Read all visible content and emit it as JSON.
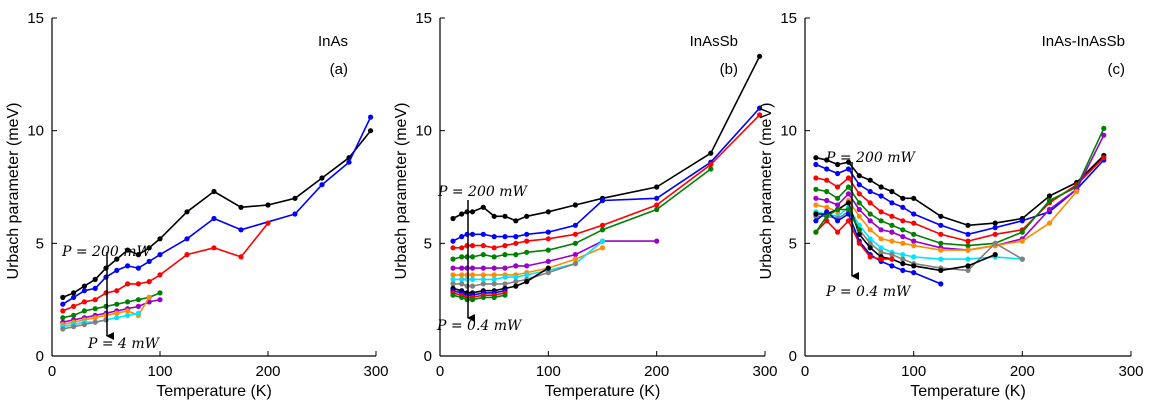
{
  "chart_data": [
    {
      "type": "line",
      "panel": "(a)",
      "title": "InAs",
      "xlabel": "Temperature (K)",
      "ylabel": "Urbach parameter (meV)",
      "xlim": [
        0,
        300
      ],
      "ylim": [
        0,
        15
      ],
      "xticks": [
        "0",
        "100",
        "200",
        "300"
      ],
      "yticks": [
        "0",
        "5",
        "10",
        "15"
      ],
      "grid": false,
      "legend": "none",
      "annotations": {
        "top": "P = 200 mW",
        "bottom": "P = 4 mW"
      },
      "series": [
        {
          "color": "#000000",
          "x": [
            10,
            20,
            30,
            40,
            50,
            60,
            70,
            80,
            90,
            100,
            125,
            150,
            175,
            200,
            225,
            250,
            275,
            295
          ],
          "y": [
            2.6,
            2.8,
            3.1,
            3.4,
            3.9,
            4.3,
            4.7,
            4.5,
            4.8,
            5.2,
            6.4,
            7.3,
            6.6,
            6.7,
            7.0,
            7.9,
            8.8,
            10.0
          ]
        },
        {
          "color": "#0000ff",
          "x": [
            10,
            20,
            30,
            40,
            50,
            60,
            70,
            80,
            90,
            100,
            125,
            150,
            175,
            225,
            250,
            275,
            295
          ],
          "y": [
            2.3,
            2.6,
            2.9,
            3.0,
            3.5,
            3.8,
            4.0,
            3.9,
            4.2,
            4.5,
            5.2,
            6.1,
            5.6,
            6.3,
            7.6,
            8.6,
            10.6
          ]
        },
        {
          "color": "#ff0000",
          "x": [
            10,
            20,
            30,
            40,
            50,
            60,
            70,
            80,
            90,
            100,
            125,
            150,
            175,
            200
          ],
          "y": [
            2.0,
            2.2,
            2.4,
            2.5,
            2.8,
            2.9,
            3.2,
            3.2,
            3.3,
            3.6,
            4.5,
            4.8,
            4.4,
            5.9
          ]
        },
        {
          "color": "#008000",
          "x": [
            10,
            20,
            30,
            40,
            50,
            60,
            70,
            80,
            90,
            100
          ],
          "y": [
            1.7,
            1.8,
            2.0,
            2.1,
            2.2,
            2.3,
            2.4,
            2.5,
            2.6,
            2.8
          ]
        },
        {
          "color": "#9900cc",
          "x": [
            10,
            20,
            30,
            40,
            50,
            60,
            70,
            80,
            90,
            100
          ],
          "y": [
            1.5,
            1.6,
            1.7,
            1.8,
            1.9,
            2.0,
            2.1,
            2.2,
            2.4,
            2.5
          ]
        },
        {
          "color": "#ff8c00",
          "x": [
            10,
            20,
            30,
            40,
            50,
            60,
            70,
            80,
            90
          ],
          "y": [
            1.4,
            1.5,
            1.6,
            1.7,
            1.8,
            1.9,
            2.0,
            1.8,
            2.6
          ]
        },
        {
          "color": "#00e5ff",
          "x": [
            10,
            20,
            30,
            40,
            50,
            60,
            70,
            80
          ],
          "y": [
            1.3,
            1.4,
            1.5,
            1.5,
            1.6,
            1.7,
            1.8,
            1.9
          ]
        },
        {
          "color": "#808080",
          "x": [
            10,
            20,
            30,
            40,
            50
          ],
          "y": [
            1.2,
            1.3,
            1.4,
            1.5,
            1.6
          ]
        }
      ]
    },
    {
      "type": "line",
      "panel": "(b)",
      "title": "InAsSb",
      "xlabel": "Temperature (K)",
      "ylabel": "Urbach parameter (meV)",
      "xlim": [
        0,
        300
      ],
      "ylim": [
        0,
        15
      ],
      "xticks": [
        "0",
        "100",
        "200",
        "300"
      ],
      "yticks": [
        "0",
        "5",
        "10",
        "15"
      ],
      "grid": false,
      "legend": "none",
      "annotations": {
        "top": "P = 200 mW",
        "bottom": "P = 0.4 mW"
      },
      "series": [
        {
          "color": "#000000",
          "x": [
            12,
            20,
            25,
            30,
            40,
            50,
            60,
            70,
            80,
            100,
            125,
            150,
            200,
            250,
            295
          ],
          "y": [
            6.1,
            6.3,
            6.4,
            6.4,
            6.6,
            6.2,
            6.2,
            6.0,
            6.2,
            6.4,
            6.7,
            7.0,
            7.5,
            9.0,
            13.3
          ]
        },
        {
          "color": "#0000ff",
          "x": [
            12,
            20,
            25,
            30,
            40,
            50,
            60,
            70,
            80,
            100,
            125,
            150,
            200,
            250,
            295
          ],
          "y": [
            5.1,
            5.3,
            5.4,
            5.4,
            5.4,
            5.3,
            5.3,
            5.3,
            5.4,
            5.5,
            5.8,
            6.9,
            7.0,
            8.6,
            11.0
          ]
        },
        {
          "color": "#ff0000",
          "x": [
            12,
            20,
            25,
            30,
            40,
            50,
            60,
            70,
            80,
            100,
            125,
            150,
            200,
            250,
            295
          ],
          "y": [
            4.8,
            4.8,
            4.9,
            4.9,
            4.9,
            4.8,
            4.9,
            5.0,
            5.1,
            5.2,
            5.4,
            5.8,
            6.7,
            8.5,
            10.7
          ]
        },
        {
          "color": "#008000",
          "x": [
            12,
            20,
            25,
            30,
            40,
            50,
            60,
            70,
            80,
            100,
            125,
            150,
            200,
            250
          ],
          "y": [
            4.3,
            4.4,
            4.4,
            4.4,
            4.5,
            4.4,
            4.5,
            4.5,
            4.6,
            4.7,
            5.0,
            5.6,
            6.5,
            8.3
          ]
        },
        {
          "color": "#9900cc",
          "x": [
            12,
            20,
            25,
            30,
            40,
            50,
            60,
            70,
            80,
            100,
            125,
            150,
            200
          ],
          "y": [
            3.9,
            3.9,
            3.9,
            3.9,
            3.9,
            3.9,
            3.9,
            4.0,
            4.0,
            4.2,
            4.5,
            5.1,
            5.1
          ]
        },
        {
          "color": "#ff8c00",
          "x": [
            12,
            20,
            25,
            30,
            40,
            50,
            60,
            70,
            80,
            100,
            125,
            150
          ],
          "y": [
            3.6,
            3.6,
            3.6,
            3.6,
            3.6,
            3.6,
            3.6,
            3.6,
            3.7,
            3.9,
            4.3,
            4.8
          ]
        },
        {
          "color": "#00e5ff",
          "x": [
            12,
            20,
            25,
            30,
            40,
            50,
            60,
            70,
            80,
            100,
            125,
            150
          ],
          "y": [
            3.4,
            3.4,
            3.4,
            3.4,
            3.4,
            3.4,
            3.5,
            3.5,
            3.6,
            3.8,
            4.1,
            5.1
          ]
        },
        {
          "color": "#808080",
          "x": [
            12,
            20,
            25,
            30,
            40,
            50,
            60,
            70,
            80,
            100,
            125
          ],
          "y": [
            3.2,
            3.2,
            3.1,
            3.1,
            3.2,
            3.2,
            3.2,
            3.3,
            3.4,
            3.7,
            4.1
          ]
        },
        {
          "color": "#000000",
          "x": [
            12,
            20,
            25,
            30,
            40,
            50,
            60,
            70,
            80,
            100
          ],
          "y": [
            3.0,
            2.9,
            2.8,
            2.8,
            2.9,
            2.9,
            3.0,
            3.1,
            3.3,
            3.9
          ]
        },
        {
          "color": "#0000ff",
          "x": [
            12,
            20,
            25,
            30,
            40,
            50,
            60
          ],
          "y": [
            2.9,
            2.8,
            2.7,
            2.7,
            2.8,
            2.8,
            2.9
          ]
        },
        {
          "color": "#ff0000",
          "x": [
            12,
            20,
            25,
            30,
            40,
            50,
            60
          ],
          "y": [
            2.8,
            2.7,
            2.6,
            2.6,
            2.7,
            2.7,
            2.8
          ]
        },
        {
          "color": "#008000",
          "x": [
            12,
            20,
            25,
            30,
            40,
            50,
            60
          ],
          "y": [
            2.7,
            2.6,
            2.5,
            2.5,
            2.6,
            2.6,
            2.7
          ]
        }
      ]
    },
    {
      "type": "line",
      "panel": "(c)",
      "title": "InAs-InAsSb",
      "xlabel": "Temperature (K)",
      "ylabel": "Urbach parameter (meV)",
      "xlim": [
        0,
        300
      ],
      "ylim": [
        0,
        15
      ],
      "xticks": [
        "0",
        "100",
        "200",
        "300"
      ],
      "yticks": [
        "0",
        "5",
        "10",
        "15"
      ],
      "grid": false,
      "legend": "none",
      "annotations": {
        "top": "P = 200 mW",
        "bottom": "P = 0.4 mW"
      },
      "series": [
        {
          "color": "#000000",
          "x": [
            10,
            20,
            30,
            40,
            50,
            60,
            70,
            80,
            90,
            100,
            125,
            150,
            175,
            200,
            225,
            250,
            275
          ],
          "y": [
            8.8,
            8.7,
            8.5,
            8.6,
            8.0,
            7.8,
            7.5,
            7.3,
            7.0,
            7.0,
            6.2,
            5.8,
            5.9,
            6.1,
            7.1,
            7.7,
            8.9
          ]
        },
        {
          "color": "#0000ff",
          "x": [
            10,
            20,
            30,
            40,
            50,
            60,
            70,
            80,
            90,
            100,
            125,
            150,
            175,
            200,
            225,
            250,
            275
          ],
          "y": [
            8.5,
            8.3,
            8.1,
            8.3,
            7.6,
            7.3,
            7.1,
            6.8,
            6.6,
            6.3,
            5.8,
            5.4,
            5.7,
            6.0,
            6.4,
            7.4,
            8.7
          ]
        },
        {
          "color": "#ff0000",
          "x": [
            10,
            20,
            30,
            40,
            50,
            60,
            70,
            80,
            90,
            100,
            125,
            150,
            175,
            200,
            225,
            250,
            275
          ],
          "y": [
            7.9,
            7.8,
            7.5,
            7.9,
            7.2,
            6.8,
            6.4,
            6.2,
            6.0,
            5.9,
            5.4,
            5.1,
            5.4,
            5.6,
            6.8,
            7.6,
            8.8
          ]
        },
        {
          "color": "#008000",
          "x": [
            10,
            20,
            30,
            40,
            50,
            60,
            70,
            80,
            90,
            100,
            125,
            150,
            175,
            200,
            225,
            250,
            275
          ],
          "y": [
            7.4,
            7.3,
            7.0,
            7.5,
            6.8,
            6.3,
            6.0,
            5.8,
            5.6,
            5.4,
            5.0,
            4.9,
            5.0,
            5.5,
            6.9,
            7.5,
            10.1
          ]
        },
        {
          "color": "#9900cc",
          "x": [
            10,
            20,
            30,
            40,
            50,
            60,
            70,
            80,
            90,
            100,
            125,
            150,
            175,
            200,
            225,
            250,
            275
          ],
          "y": [
            7.0,
            6.9,
            6.7,
            7.2,
            6.5,
            6.0,
            5.6,
            5.5,
            5.3,
            5.1,
            4.8,
            4.7,
            4.9,
            5.2,
            6.5,
            7.4,
            9.8
          ]
        },
        {
          "color": "#ff8c00",
          "x": [
            10,
            20,
            30,
            40,
            50,
            60,
            70,
            80,
            90,
            100,
            125,
            150,
            175,
            200,
            225,
            250
          ],
          "y": [
            6.7,
            6.6,
            6.4,
            6.9,
            6.2,
            5.6,
            5.2,
            5.1,
            5.0,
            4.9,
            4.7,
            4.7,
            4.9,
            5.1,
            5.9,
            7.3
          ]
        },
        {
          "color": "#00e5ff",
          "x": [
            10,
            20,
            30,
            40,
            50,
            60,
            70,
            80,
            90,
            100,
            125,
            150,
            175,
            200
          ],
          "y": [
            6.4,
            6.3,
            6.2,
            6.6,
            5.8,
            5.2,
            4.8,
            4.6,
            4.5,
            4.4,
            4.3,
            4.3,
            4.4,
            4.3
          ]
        },
        {
          "color": "#808080",
          "x": [
            10,
            20,
            30,
            40,
            50,
            60,
            70,
            80,
            90,
            100,
            125,
            150,
            175,
            200
          ],
          "y": [
            6.2,
            6.2,
            6.1,
            6.4,
            5.6,
            5.0,
            4.6,
            4.5,
            4.3,
            4.1,
            3.9,
            3.8,
            5.0,
            4.3
          ]
        },
        {
          "color": "#000000",
          "x": [
            10,
            20,
            30,
            40,
            50,
            60,
            70,
            80,
            90,
            100,
            125,
            150,
            175
          ],
          "y": [
            6.3,
            6.3,
            6.5,
            6.8,
            5.4,
            4.8,
            4.4,
            4.3,
            4.1,
            4.0,
            3.8,
            4.0,
            4.5
          ]
        },
        {
          "color": "#0000ff",
          "x": [
            10,
            20,
            30,
            40,
            50,
            60,
            70,
            80,
            90,
            100,
            125
          ],
          "y": [
            6.0,
            6.4,
            6.0,
            6.3,
            5.1,
            4.5,
            4.2,
            4.0,
            3.8,
            3.7,
            3.2
          ]
        },
        {
          "color": "#ff0000",
          "x": [
            10,
            20,
            30,
            40,
            50,
            60,
            70,
            80
          ],
          "y": [
            5.5,
            6.0,
            5.5,
            6.0,
            5.0,
            4.4,
            4.3,
            4.3
          ]
        },
        {
          "color": "#008000",
          "x": [
            10,
            20,
            30,
            40,
            50
          ],
          "y": [
            5.5,
            6.2,
            6.5,
            6.5,
            5.6
          ]
        }
      ]
    }
  ]
}
